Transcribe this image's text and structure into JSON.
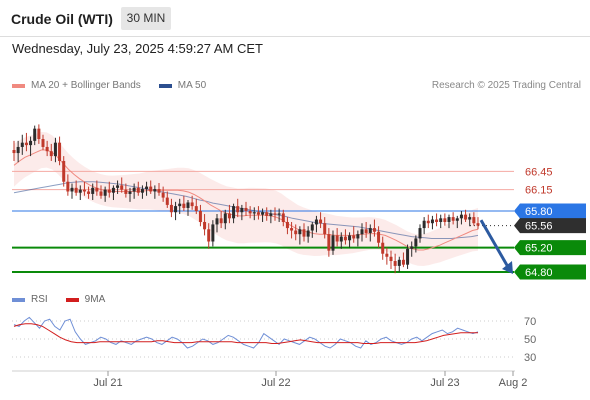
{
  "header": {
    "instrument": "Crude Oil (WTI)",
    "timeframe": "30 MIN",
    "datetime": "Wednesday, July 23, 2025 4:59:27 AM CET"
  },
  "legend": {
    "ma20_label": "MA 20 + Bollinger Bands",
    "ma50_label": "MA 50",
    "ma20_color": "#f08a80",
    "ma50_color": "#2c4f8f",
    "credit": "Research © 2025 Trading Central"
  },
  "rsi_legend": {
    "rsi_label": "RSI",
    "ma9_label": "9MA",
    "rsi_color": "#6f8fd6",
    "ma9_color": "#d21e1e"
  },
  "colors": {
    "resistance": "#f4a9a2",
    "pivot": "#2b76e5",
    "support": "#0a8a0a",
    "current": "#2f2f2f",
    "bull_candle": "#2b2b2b",
    "bear_candle": "#c0392b",
    "arrow": "#2c5aa0"
  },
  "chart_data": [
    {
      "type": "candlestick",
      "title": "Crude Oil (WTI)",
      "timeframe": "30 MIN",
      "x_ticks": [
        "Jul 21",
        "Jul 22",
        "Jul 23",
        "Aug 2"
      ],
      "levels": [
        {
          "label": "66.45",
          "value": 66.45,
          "kind": "resistance"
        },
        {
          "label": "66.15",
          "value": 66.15,
          "kind": "resistance"
        },
        {
          "label": "65.80",
          "value": 65.8,
          "kind": "pivot"
        },
        {
          "label": "65.56",
          "value": 65.56,
          "kind": "current"
        },
        {
          "label": "65.20",
          "value": 65.2,
          "kind": "support"
        },
        {
          "label": "64.80",
          "value": 64.8,
          "kind": "support"
        }
      ],
      "ylim": [
        64.69,
        67.22
      ],
      "forecast": {
        "direction": "down",
        "from": 65.65,
        "to": 64.8
      },
      "ohlc": [
        [
          66.8,
          66.95,
          66.62,
          66.75
        ],
        [
          66.75,
          66.95,
          66.6,
          66.85
        ],
        [
          66.85,
          67.05,
          66.72,
          66.92
        ],
        [
          66.92,
          67.08,
          66.78,
          66.88
        ],
        [
          66.88,
          67.02,
          66.7,
          66.95
        ],
        [
          66.95,
          67.2,
          66.88,
          67.15
        ],
        [
          67.15,
          67.22,
          66.9,
          66.98
        ],
        [
          66.98,
          67.05,
          66.8,
          66.85
        ],
        [
          66.85,
          66.95,
          66.7,
          66.78
        ],
        [
          66.78,
          66.9,
          66.62,
          66.7
        ],
        [
          66.7,
          67.0,
          66.6,
          66.92
        ],
        [
          66.92,
          67.02,
          66.55,
          66.62
        ],
        [
          66.62,
          66.7,
          66.2,
          66.28
        ],
        [
          66.28,
          66.4,
          66.05,
          66.12
        ],
        [
          66.12,
          66.25,
          66.0,
          66.18
        ],
        [
          66.18,
          66.3,
          66.05,
          66.1
        ],
        [
          66.1,
          66.22,
          65.98,
          66.15
        ],
        [
          66.15,
          66.28,
          66.05,
          66.12
        ],
        [
          66.12,
          66.2,
          66.0,
          66.08
        ],
        [
          66.08,
          66.25,
          65.98,
          66.18
        ],
        [
          66.18,
          66.3,
          66.05,
          66.12
        ],
        [
          66.12,
          66.22,
          66.0,
          66.05
        ],
        [
          66.05,
          66.2,
          65.95,
          66.15
        ],
        [
          66.15,
          66.28,
          66.02,
          66.1
        ],
        [
          66.1,
          66.22,
          65.98,
          66.18
        ],
        [
          66.18,
          66.3,
          66.08,
          66.22
        ],
        [
          66.22,
          66.35,
          66.1,
          66.15
        ],
        [
          66.15,
          66.25,
          66.02,
          66.08
        ],
        [
          66.08,
          66.18,
          65.95,
          66.12
        ],
        [
          66.12,
          66.25,
          66.0,
          66.18
        ],
        [
          66.18,
          66.28,
          66.05,
          66.1
        ],
        [
          66.1,
          66.22,
          66.0,
          66.16
        ],
        [
          66.16,
          66.28,
          66.05,
          66.2
        ],
        [
          66.2,
          66.3,
          66.08,
          66.12
        ],
        [
          66.12,
          66.22,
          66.0,
          66.16
        ],
        [
          66.16,
          66.26,
          66.05,
          66.1
        ],
        [
          66.1,
          66.2,
          65.95,
          66.02
        ],
        [
          66.02,
          66.12,
          65.85,
          65.9
        ],
        [
          65.9,
          66.0,
          65.7,
          65.78
        ],
        [
          65.78,
          65.95,
          65.65,
          65.88
        ],
        [
          65.88,
          66.0,
          65.75,
          65.92
        ],
        [
          65.92,
          66.05,
          65.8,
          65.85
        ],
        [
          65.85,
          65.98,
          65.72,
          65.94
        ],
        [
          65.94,
          66.05,
          65.82,
          65.88
        ],
        [
          65.88,
          66.0,
          65.75,
          65.8
        ],
        [
          65.8,
          65.9,
          65.55,
          65.62
        ],
        [
          65.62,
          65.75,
          65.4,
          65.5
        ],
        [
          65.5,
          65.6,
          65.18,
          65.3
        ],
        [
          65.3,
          65.65,
          65.22,
          65.58
        ],
        [
          65.58,
          65.75,
          65.45,
          65.68
        ],
        [
          65.68,
          65.8,
          65.52,
          65.6
        ],
        [
          65.6,
          65.82,
          65.5,
          65.76
        ],
        [
          65.76,
          65.9,
          65.6,
          65.68
        ],
        [
          65.68,
          65.92,
          65.6,
          65.88
        ],
        [
          65.88,
          66.0,
          65.7,
          65.78
        ],
        [
          65.78,
          65.9,
          65.65,
          65.85
        ],
        [
          65.85,
          65.95,
          65.72,
          65.8
        ],
        [
          65.8,
          65.88,
          65.68,
          65.76
        ],
        [
          65.76,
          65.86,
          65.65,
          65.78
        ],
        [
          65.78,
          65.88,
          65.66,
          65.74
        ],
        [
          65.74,
          65.84,
          65.62,
          65.78
        ],
        [
          65.78,
          65.86,
          65.64,
          65.72
        ],
        [
          65.72,
          65.82,
          65.6,
          65.76
        ],
        [
          65.76,
          65.86,
          65.64,
          65.74
        ],
        [
          65.74,
          65.84,
          65.62,
          65.76
        ],
        [
          65.76,
          65.82,
          65.55,
          65.62
        ],
        [
          65.62,
          65.7,
          65.42,
          65.52
        ],
        [
          65.52,
          65.62,
          65.35,
          65.48
        ],
        [
          65.48,
          65.58,
          65.32,
          65.42
        ],
        [
          65.42,
          65.55,
          65.25,
          65.5
        ],
        [
          65.5,
          65.6,
          65.3,
          65.38
        ],
        [
          65.38,
          65.55,
          65.28,
          65.48
        ],
        [
          65.48,
          65.62,
          65.36,
          65.58
        ],
        [
          65.58,
          65.72,
          65.45,
          65.66
        ],
        [
          65.66,
          65.78,
          65.52,
          65.6
        ],
        [
          65.6,
          65.7,
          65.35,
          65.42
        ],
        [
          65.42,
          65.52,
          65.05,
          65.15
        ],
        [
          65.15,
          65.48,
          65.08,
          65.4
        ],
        [
          65.4,
          65.52,
          65.22,
          65.3
        ],
        [
          65.3,
          65.45,
          65.18,
          65.38
        ],
        [
          65.38,
          65.5,
          65.25,
          65.32
        ],
        [
          65.32,
          65.45,
          65.2,
          65.4
        ],
        [
          65.4,
          65.55,
          65.28,
          65.35
        ],
        [
          65.35,
          65.48,
          65.22,
          65.42
        ],
        [
          65.42,
          65.6,
          65.3,
          65.5
        ],
        [
          65.5,
          65.62,
          65.36,
          65.44
        ],
        [
          65.44,
          65.58,
          65.3,
          65.52
        ],
        [
          65.52,
          65.66,
          65.38,
          65.46
        ],
        [
          65.46,
          65.55,
          65.2,
          65.28
        ],
        [
          65.28,
          65.38,
          65.0,
          65.1
        ],
        [
          65.1,
          65.2,
          64.92,
          65.05
        ],
        [
          65.05,
          65.15,
          64.85,
          64.98
        ],
        [
          64.98,
          65.1,
          64.78,
          64.9
        ],
        [
          64.9,
          65.05,
          64.8,
          65.0
        ],
        [
          65.0,
          65.12,
          64.88,
          64.92
        ],
        [
          64.92,
          65.25,
          64.85,
          65.18
        ],
        [
          65.18,
          65.3,
          65.05,
          65.22
        ],
        [
          65.22,
          65.4,
          65.12,
          65.35
        ],
        [
          65.35,
          65.58,
          65.28,
          65.52
        ],
        [
          65.52,
          65.7,
          65.42,
          65.64
        ],
        [
          65.64,
          65.74,
          65.52,
          65.6
        ],
        [
          65.6,
          65.72,
          65.5,
          65.66
        ],
        [
          65.66,
          65.76,
          65.55,
          65.62
        ],
        [
          65.62,
          65.74,
          65.52,
          65.68
        ],
        [
          65.68,
          65.76,
          65.56,
          65.62
        ],
        [
          65.62,
          65.74,
          65.52,
          65.7
        ],
        [
          65.7,
          65.78,
          65.58,
          65.64
        ],
        [
          65.64,
          65.72,
          65.52,
          65.68
        ],
        [
          65.68,
          65.8,
          65.58,
          65.74
        ],
        [
          65.74,
          65.82,
          65.62,
          65.66
        ],
        [
          65.66,
          65.76,
          65.55,
          65.7
        ],
        [
          65.7,
          65.78,
          65.56,
          65.6
        ],
        [
          65.6,
          65.7,
          65.5,
          65.56
        ]
      ],
      "ma20": [
        66.55,
        66.62,
        66.68,
        66.72,
        66.76,
        66.8,
        66.8,
        66.76,
        66.68,
        66.58,
        66.48,
        66.4,
        66.33,
        66.27,
        66.22,
        66.18,
        66.15,
        66.13,
        66.12,
        66.12,
        66.12,
        66.12,
        66.12,
        66.12,
        66.13,
        66.14,
        66.14,
        66.14,
        66.14,
        66.14,
        66.14,
        66.13,
        66.11,
        66.07,
        66.02,
        65.96,
        65.9,
        65.85,
        65.8,
        65.76,
        65.74,
        65.72,
        65.72,
        65.73,
        65.73,
        65.73,
        65.73,
        65.72,
        65.7,
        65.66,
        65.6,
        65.55,
        65.5,
        65.47,
        65.45,
        65.43,
        65.42,
        65.42,
        65.41,
        65.4,
        65.4,
        65.4,
        65.4,
        65.41,
        65.42,
        65.43,
        65.43,
        65.42,
        65.4,
        65.36,
        65.32,
        65.27,
        65.22,
        65.18,
        65.16,
        65.16,
        65.18,
        65.21,
        65.24,
        65.28,
        65.32,
        65.36,
        65.4,
        65.44,
        65.48,
        65.5
      ],
      "ma50": [
        66.1,
        66.12,
        66.14,
        66.16,
        66.18,
        66.2,
        66.22,
        66.24,
        66.26,
        66.27,
        66.28,
        66.28,
        66.28,
        66.27,
        66.26,
        66.25,
        66.24,
        66.22,
        66.2,
        66.18,
        66.16,
        66.14,
        66.12,
        66.1,
        66.08,
        66.06,
        66.04,
        66.01,
        65.98,
        65.96,
        65.93,
        65.91,
        65.89,
        65.87,
        65.85,
        65.83,
        65.81,
        65.79,
        65.77,
        65.75,
        65.73,
        65.71,
        65.68,
        65.66,
        65.64,
        65.62,
        65.6,
        65.59,
        65.58,
        65.57,
        65.56,
        65.55,
        65.54,
        65.52,
        65.5,
        65.48,
        65.46,
        65.44,
        65.42,
        65.4,
        65.38,
        65.37,
        65.36,
        65.35,
        65.35,
        65.35,
        65.35,
        65.36,
        65.37,
        65.38,
        65.4
      ]
    },
    {
      "type": "line",
      "title": "RSI",
      "y_ticks": [
        "70",
        "50",
        "30"
      ],
      "ylim": [
        20,
        80
      ],
      "series": [
        {
          "name": "RSI",
          "values": [
            66,
            64,
            70,
            74,
            68,
            62,
            70,
            72,
            64,
            60,
            70,
            72,
            58,
            50,
            44,
            46,
            48,
            52,
            50,
            46,
            44,
            48,
            46,
            44,
            48,
            50,
            52,
            50,
            46,
            44,
            48,
            52,
            50,
            46,
            40,
            42,
            46,
            50,
            48,
            44,
            46,
            50,
            54,
            52,
            48,
            44,
            42,
            40,
            46,
            56,
            52,
            48,
            44,
            50,
            48,
            46,
            44,
            48,
            52,
            50,
            46,
            42,
            40,
            44,
            50,
            48,
            46,
            42,
            40,
            48,
            44,
            46,
            50,
            52,
            48,
            46,
            44,
            46,
            50,
            52,
            48,
            52,
            56,
            58,
            60,
            56,
            58,
            62,
            60,
            58,
            56,
            58
          ]
        },
        {
          "name": "9MA",
          "values": [
            64,
            66,
            67,
            67,
            66,
            64,
            60,
            56,
            52,
            49,
            47,
            46,
            46,
            46,
            46,
            47,
            47,
            47,
            47,
            47,
            47,
            47,
            47,
            47,
            47,
            48,
            48,
            47,
            46,
            46,
            46,
            46,
            47,
            47,
            47,
            47,
            47,
            47,
            47,
            46,
            46,
            46,
            46,
            46,
            46,
            45,
            45,
            46,
            47,
            48,
            49,
            48,
            47,
            46,
            46,
            46,
            46,
            46,
            46,
            46,
            46,
            45,
            45,
            45,
            46,
            46,
            46,
            46,
            46,
            46,
            46,
            47,
            48,
            50,
            52,
            54,
            55,
            56,
            57,
            57,
            57,
            57
          ]
        }
      ]
    }
  ]
}
